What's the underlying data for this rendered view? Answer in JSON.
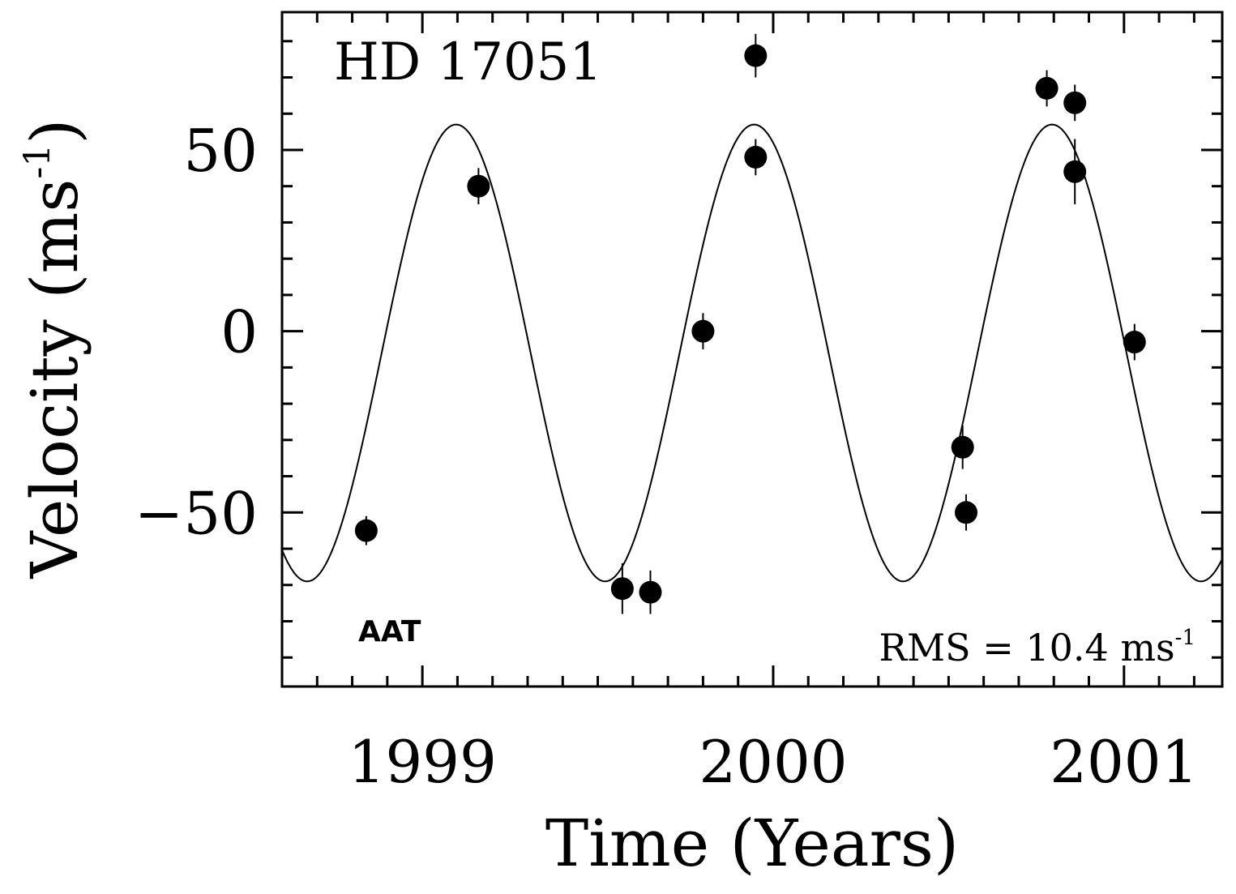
{
  "chart_data": {
    "type": "scatter",
    "title": "",
    "xlabel": "Time (Years)",
    "ylabel_main": "Velocity (ms",
    "ylabel_sup": "-1",
    "ylabel_close": ")",
    "xlim": [
      1998.6,
      2001.28
    ],
    "ylim": [
      -98,
      88
    ],
    "x_ticks": [
      {
        "value": 1999,
        "label": "1999"
      },
      {
        "value": 2000,
        "label": "2000"
      },
      {
        "value": 2001,
        "label": "2001"
      }
    ],
    "x_minor_step": 0.1,
    "y_ticks": [
      {
        "value": 50,
        "label": "50"
      },
      {
        "value": 0,
        "label": "0"
      },
      {
        "value": -50,
        "label": "−50"
      }
    ],
    "y_minor_step": 10,
    "annotations": {
      "star": "HD 17051",
      "telescope": "AAT",
      "rms_text": "RMS = 10.4 ms",
      "rms_sup": "-1"
    },
    "model": {
      "type": "sinusoid",
      "mean": -6,
      "amplitude": 63,
      "period_years": 0.8493,
      "peak_epoch": 1999.0963
    },
    "points": [
      {
        "x": 1998.84,
        "y": -55,
        "err": 4
      },
      {
        "x": 1999.16,
        "y": 40,
        "err": 5
      },
      {
        "x": 1999.57,
        "y": -71,
        "err": 7
      },
      {
        "x": 1999.65,
        "y": -72,
        "err": 6
      },
      {
        "x": 1999.8,
        "y": 0,
        "err": 5
      },
      {
        "x": 1999.95,
        "y": 76,
        "err": 6
      },
      {
        "x": 1999.95,
        "y": 48,
        "err": 5
      },
      {
        "x": 2000.54,
        "y": -32,
        "err": 6
      },
      {
        "x": 2000.55,
        "y": -50,
        "err": 5
      },
      {
        "x": 2000.78,
        "y": 67,
        "err": 5
      },
      {
        "x": 2000.86,
        "y": 63,
        "err": 5
      },
      {
        "x": 2000.86,
        "y": 44,
        "err": 9
      },
      {
        "x": 2001.03,
        "y": -3,
        "err": 5
      }
    ]
  }
}
